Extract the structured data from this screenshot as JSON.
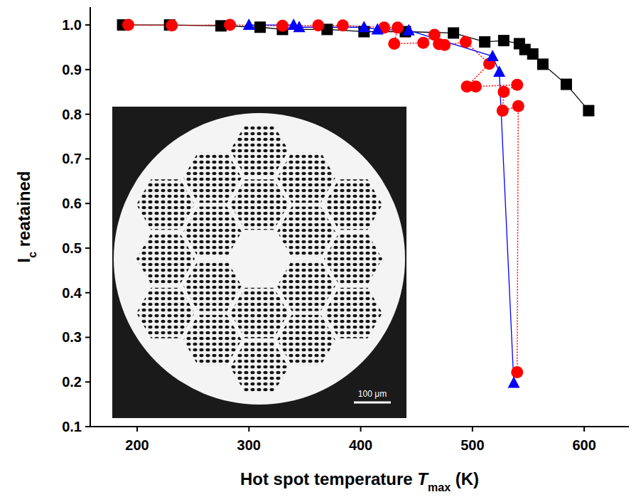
{
  "chart_data": {
    "type": "scatter",
    "x_label_parts": [
      "Hot spot temperature ",
      "T",
      "max",
      " (K)"
    ],
    "y_label_parts": [
      "I",
      "c",
      " reatained"
    ],
    "xlim": [
      158,
      640
    ],
    "ylim": [
      0.1,
      1.04
    ],
    "xticks": [
      200,
      300,
      400,
      500,
      600
    ],
    "yticks": [
      0.1,
      0.2,
      0.3,
      0.4,
      0.5,
      0.6,
      0.7,
      0.8,
      0.9,
      {
        "value": 1,
        "label": "1.0"
      }
    ],
    "series": [
      {
        "color": "#000000",
        "marker": "square",
        "line_style": "solid",
        "x": [
          187,
          229,
          275,
          310,
          330,
          370,
          403,
          440,
          483,
          511,
          528,
          542,
          547,
          554,
          563,
          584,
          604
        ],
        "values": [
          1.0,
          1.0,
          0.998,
          0.995,
          0.99,
          0.99,
          0.985,
          0.985,
          0.982,
          0.962,
          0.965,
          0.958,
          0.945,
          0.935,
          0.912,
          0.867,
          0.808
        ]
      },
      {
        "color": "#ff0000",
        "marker": "circle",
        "line_style": "dotted",
        "x": [
          192,
          231,
          283,
          330,
          362,
          384,
          421,
          433,
          430,
          456,
          466,
          470,
          475,
          494,
          515,
          495,
          503,
          540,
          528,
          527,
          541,
          540
        ],
        "values": [
          1.0,
          0.999,
          1.0,
          0.998,
          0.999,
          0.999,
          0.994,
          0.994,
          0.958,
          0.96,
          0.978,
          0.957,
          0.955,
          0.962,
          0.913,
          0.862,
          0.862,
          0.866,
          0.85,
          0.808,
          0.818,
          0.222
        ]
      },
      {
        "color": "#0000ff",
        "marker": "triangle",
        "line_style": "solid",
        "x": [
          300,
          340,
          345,
          403,
          415,
          443,
          518,
          524,
          537
        ],
        "values": [
          1.0,
          1.0,
          0.995,
          0.995,
          0.99,
          0.988,
          0.93,
          0.895,
          0.198
        ]
      }
    ],
    "inset": {
      "scale_label": "100 μm"
    }
  }
}
